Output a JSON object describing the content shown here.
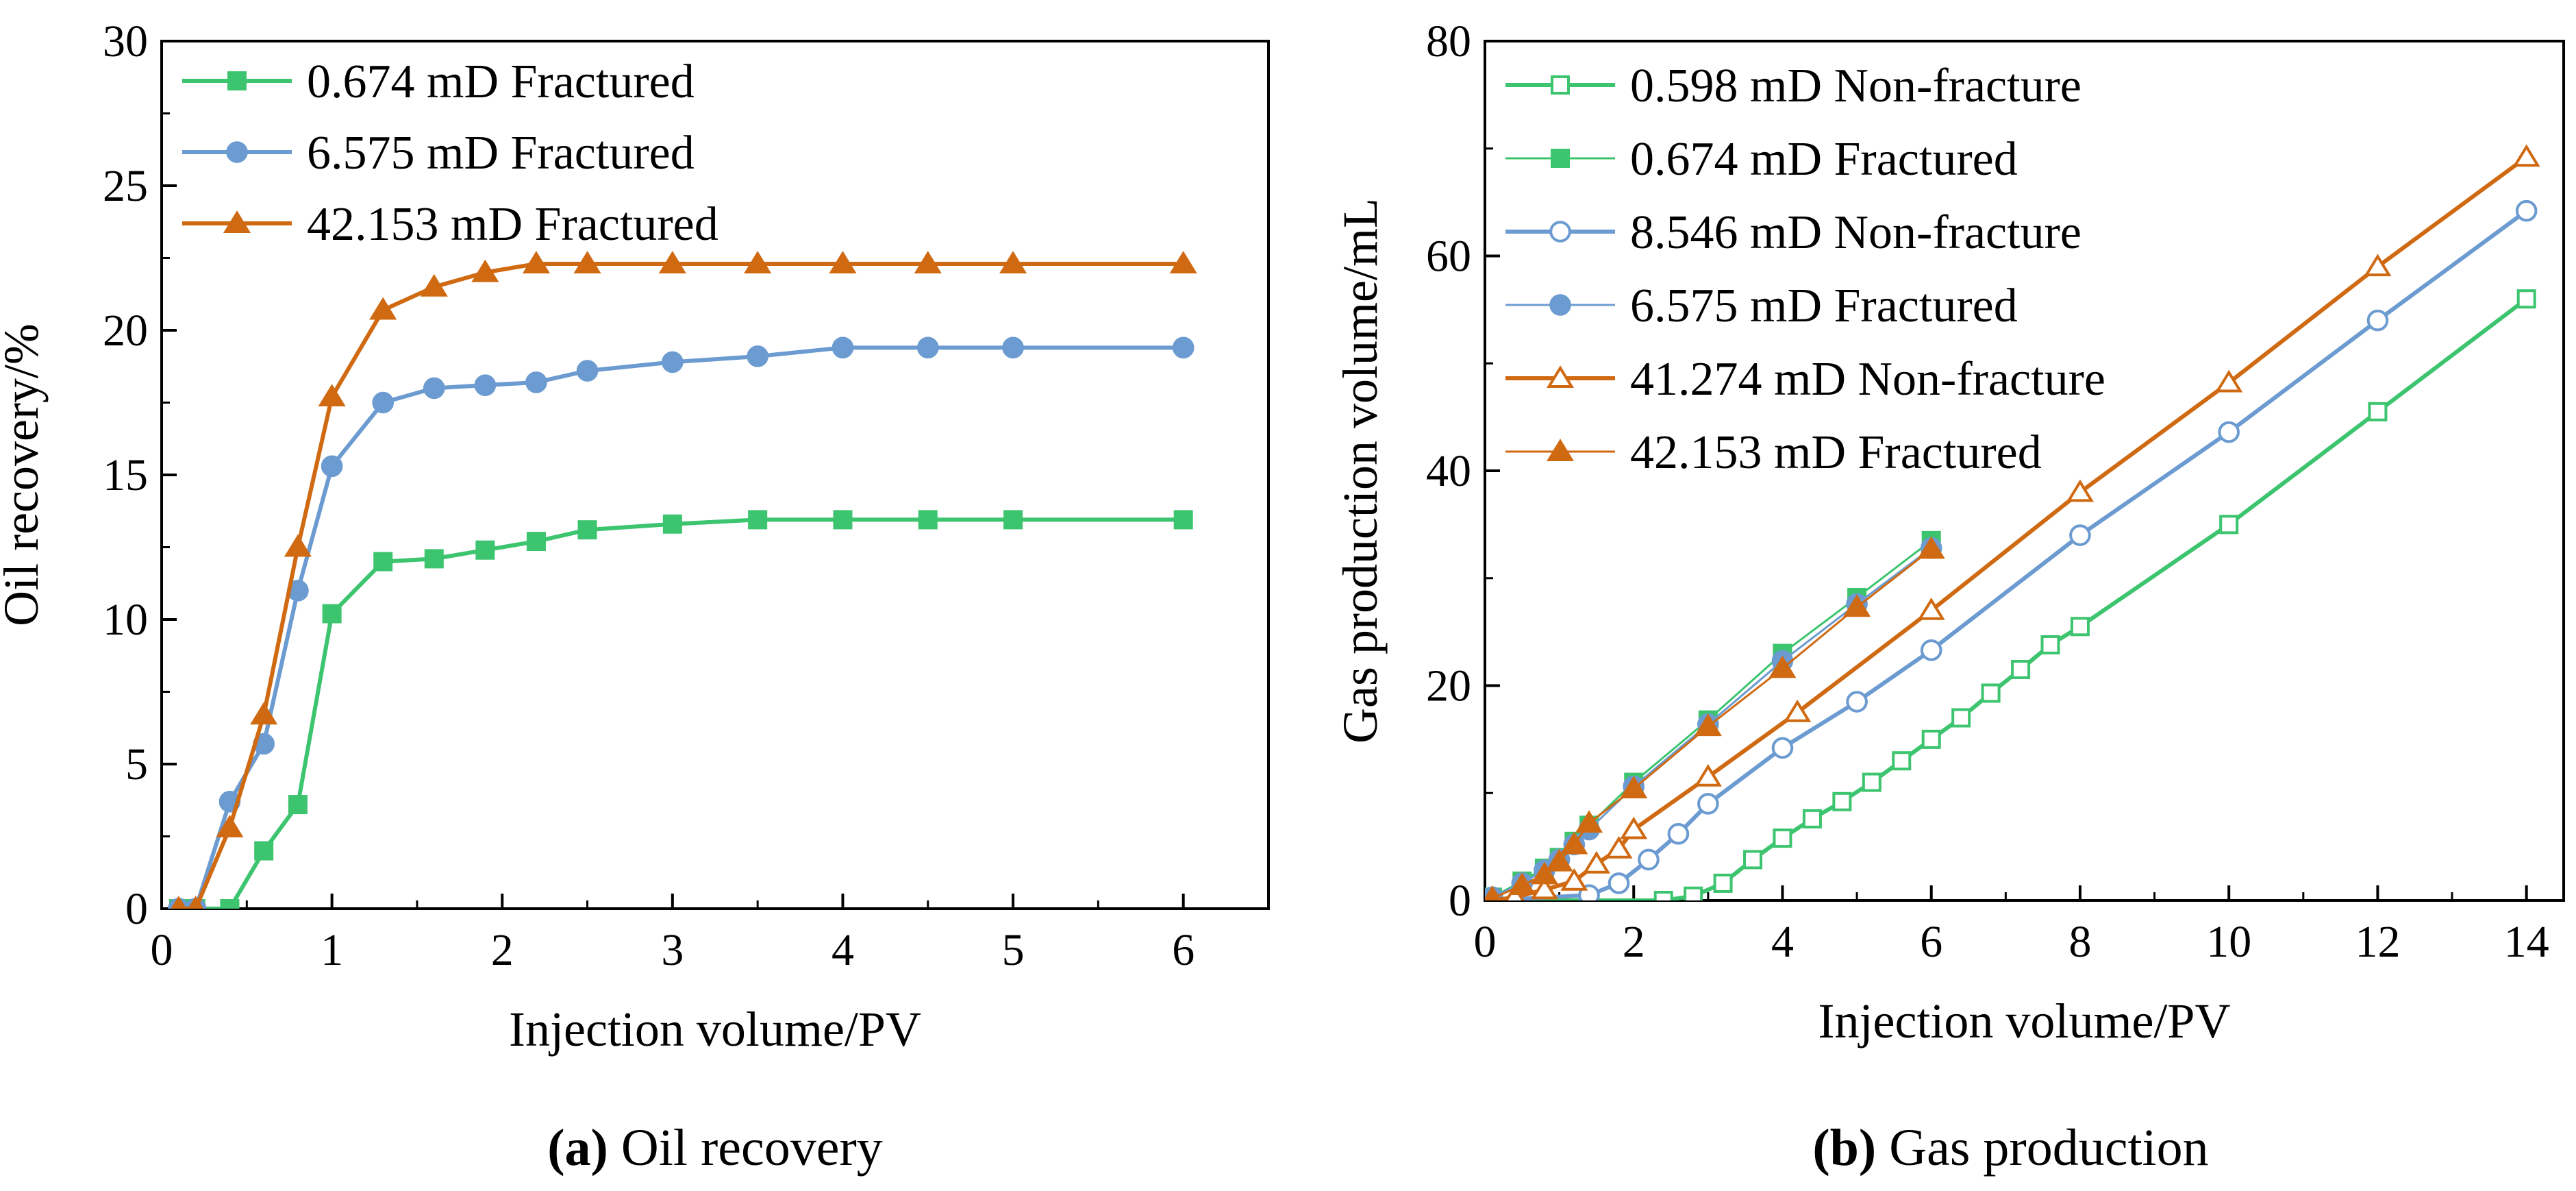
{
  "chart_data": [
    {
      "type": "line",
      "caption_label": "(a)",
      "caption_text": " Oil recovery",
      "xlabel": "Injection volume/PV",
      "ylabel": "Oil recovery/%",
      "xlim": [
        0,
        6.5
      ],
      "ylim": [
        0,
        30
      ],
      "xticks": [
        0,
        1,
        2,
        3,
        4,
        5,
        6
      ],
      "yticks": [
        0,
        5,
        10,
        15,
        20,
        25,
        30
      ],
      "legend_position": "top-left",
      "series": [
        {
          "name": "0.674 mD Fractured",
          "color": "#3cc46e",
          "marker": "square",
          "filled": true,
          "x": [
            0.1,
            0.2,
            0.4,
            0.6,
            0.8,
            1.0,
            1.3,
            1.6,
            1.9,
            2.2,
            2.5,
            3.0,
            3.5,
            4.0,
            4.5,
            5.0,
            6.0
          ],
          "y": [
            0,
            0,
            0,
            2.0,
            3.6,
            10.2,
            12.0,
            12.1,
            12.4,
            12.7,
            13.1,
            13.3,
            13.45,
            13.45,
            13.45,
            13.45,
            13.45
          ]
        },
        {
          "name": "6.575 mD Fractured",
          "color": "#6b9bd0",
          "marker": "circle",
          "filled": true,
          "x": [
            0.1,
            0.2,
            0.4,
            0.6,
            0.8,
            1.0,
            1.3,
            1.6,
            1.9,
            2.2,
            2.5,
            3.0,
            3.5,
            4.0,
            4.5,
            5.0,
            6.0
          ],
          "y": [
            0,
            0,
            3.7,
            5.7,
            11.0,
            15.3,
            17.5,
            18.0,
            18.1,
            18.2,
            18.6,
            18.9,
            19.1,
            19.4,
            19.4,
            19.4,
            19.4
          ]
        },
        {
          "name": "42.153 mD Fractured",
          "color": "#d06a12",
          "marker": "triangle",
          "filled": true,
          "x": [
            0.1,
            0.2,
            0.4,
            0.6,
            0.8,
            1.0,
            1.3,
            1.6,
            1.9,
            2.2,
            2.5,
            3.0,
            3.5,
            4.0,
            4.5,
            5.0,
            6.0
          ],
          "y": [
            0,
            0,
            2.8,
            6.7,
            12.5,
            17.7,
            20.7,
            21.5,
            22.0,
            22.3,
            22.3,
            22.3,
            22.3,
            22.3,
            22.3,
            22.3,
            22.3
          ]
        }
      ]
    },
    {
      "type": "line",
      "caption_label": "(b)",
      "caption_text": " Gas production",
      "xlabel": "Injection volume/PV",
      "ylabel": "Gas production volume/mL",
      "xlim": [
        0,
        14.5
      ],
      "ylim": [
        0,
        80
      ],
      "xticks": [
        0,
        2,
        4,
        6,
        8,
        10,
        12,
        14
      ],
      "yticks": [
        0,
        20,
        40,
        60,
        80
      ],
      "legend_position": "top-left",
      "series": [
        {
          "name": "0.598 mD Non-fracture",
          "color": "#3cc46e",
          "marker": "square",
          "filled": false,
          "thick": true,
          "x": [
            0.1,
            2.4,
            2.8,
            3.2,
            3.6,
            4.0,
            4.4,
            4.8,
            5.2,
            5.6,
            6.0,
            6.4,
            6.8,
            7.2,
            7.6,
            8.0,
            10.0,
            12.0,
            14.0
          ],
          "y": [
            0,
            0,
            0.4,
            1.6,
            3.8,
            5.8,
            7.6,
            9.2,
            11.0,
            13.0,
            15.0,
            17.0,
            19.3,
            21.5,
            23.8,
            25.5,
            35.0,
            45.5,
            56.0
          ]
        },
        {
          "name": "0.674 mD Fractured",
          "color": "#3cc46e",
          "marker": "square",
          "filled": true,
          "thick": false,
          "x": [
            0.1,
            0.5,
            0.8,
            1.0,
            1.2,
            1.4,
            2.0,
            3.0,
            4.0,
            5.0,
            6.0
          ],
          "y": [
            0.3,
            1.8,
            3.0,
            4.0,
            5.5,
            7.0,
            11.0,
            16.8,
            23.0,
            28.2,
            33.5
          ]
        },
        {
          "name": "8.546 mD Non-fracture",
          "color": "#6b9bd0",
          "marker": "circle",
          "filled": false,
          "thick": true,
          "x": [
            0.1,
            1.4,
            1.8,
            2.2,
            2.6,
            3.0,
            4.0,
            5.0,
            6.0,
            8.0,
            10.0,
            12.0,
            14.0
          ],
          "y": [
            0,
            0.5,
            1.6,
            3.8,
            6.2,
            9.0,
            14.2,
            18.5,
            23.3,
            34.0,
            43.6,
            54.0,
            64.2
          ]
        },
        {
          "name": "6.575 mD Fractured",
          "color": "#6b9bd0",
          "marker": "circle",
          "filled": true,
          "thick": false,
          "x": [
            0.1,
            0.5,
            0.8,
            1.0,
            1.2,
            1.4,
            2.0,
            3.0,
            4.0,
            5.0,
            6.0
          ],
          "y": [
            0.3,
            1.6,
            2.8,
            3.8,
            5.2,
            6.6,
            10.6,
            16.4,
            22.3,
            27.6,
            32.8
          ]
        },
        {
          "name": "41.274 mD Non-fracture",
          "color": "#d06a12",
          "marker": "triangle",
          "filled": false,
          "thick": true,
          "x": [
            0.1,
            0.4,
            0.8,
            1.2,
            1.5,
            1.8,
            2.0,
            3.0,
            4.2,
            6.0,
            8.0,
            10.0,
            12.0,
            14.0
          ],
          "y": [
            0,
            0.3,
            1.0,
            1.8,
            3.4,
            4.8,
            6.6,
            11.5,
            17.5,
            27.0,
            38.0,
            48.2,
            59.0,
            69.2
          ]
        },
        {
          "name": "42.153 mD Fractured",
          "color": "#d06a12",
          "marker": "triangle",
          "filled": true,
          "thick": false,
          "x": [
            0.1,
            0.5,
            0.8,
            1.0,
            1.2,
            1.4,
            2.0,
            3.0,
            4.0,
            5.0,
            6.0
          ],
          "y": [
            0.2,
            1.4,
            2.4,
            3.6,
            5.2,
            7.2,
            10.4,
            16.2,
            21.6,
            27.3,
            32.7
          ]
        }
      ]
    }
  ]
}
